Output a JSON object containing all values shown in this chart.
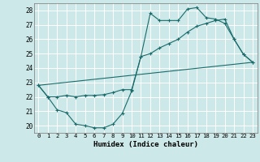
{
  "xlabel": "Humidex (Indice chaleur)",
  "bg_color": "#cce8e8",
  "line_color": "#1a6b6b",
  "grid_color": "#b0d4d4",
  "xlim": [
    -0.5,
    23.5
  ],
  "ylim": [
    19.5,
    28.5
  ],
  "xticks": [
    0,
    1,
    2,
    3,
    4,
    5,
    6,
    7,
    8,
    9,
    10,
    11,
    12,
    13,
    14,
    15,
    16,
    17,
    18,
    19,
    20,
    21,
    22,
    23
  ],
  "yticks": [
    20,
    21,
    22,
    23,
    24,
    25,
    26,
    27,
    28
  ],
  "line1_x": [
    0,
    1,
    2,
    3,
    4,
    5,
    6,
    7,
    8,
    9,
    10,
    11,
    12,
    13,
    14,
    15,
    16,
    17,
    18,
    19,
    20,
    21,
    22,
    23
  ],
  "line1_y": [
    22.8,
    22.0,
    21.1,
    20.9,
    20.1,
    20.0,
    19.85,
    19.85,
    20.1,
    20.85,
    22.4,
    24.8,
    27.8,
    27.3,
    27.3,
    27.3,
    28.1,
    28.2,
    27.5,
    27.4,
    27.1,
    26.0,
    24.95,
    24.4
  ],
  "line2_x": [
    0,
    1,
    2,
    3,
    4,
    5,
    6,
    7,
    8,
    9,
    10,
    11,
    12,
    13,
    14,
    15,
    16,
    17,
    18,
    19,
    20,
    21,
    22,
    23
  ],
  "line2_y": [
    22.8,
    22.0,
    22.0,
    22.1,
    22.0,
    22.1,
    22.1,
    22.15,
    22.3,
    22.5,
    22.5,
    24.8,
    25.0,
    25.4,
    25.7,
    26.0,
    26.5,
    26.9,
    27.1,
    27.3,
    27.4,
    26.0,
    24.95,
    24.4
  ],
  "line3_x": [
    0,
    23
  ],
  "line3_y": [
    22.8,
    24.4
  ]
}
